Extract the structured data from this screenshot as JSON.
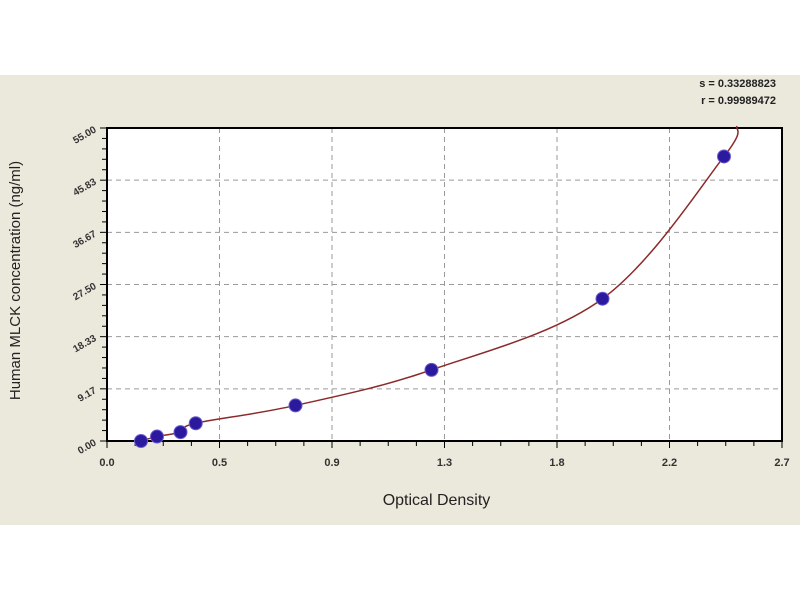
{
  "stats": {
    "s_line": "s = 0.33288823",
    "r_line": "r = 0.99989472"
  },
  "chart_data": {
    "type": "scatter",
    "title": "",
    "xlabel": "Optical Density",
    "ylabel": "Human MLCK concentration (ng/ml)",
    "xlim": [
      0,
      2.7
    ],
    "ylim": [
      0,
      55
    ],
    "x_tick_labels": [
      "0.0",
      "0.5",
      "0.9",
      "1.3",
      "1.8",
      "2.2",
      "2.7"
    ],
    "x_ticks": [
      0,
      0.45,
      0.9,
      1.35,
      1.8,
      2.25,
      2.7
    ],
    "y_tick_labels": [
      "0.00",
      "9.17",
      "18.33",
      "27.50",
      "36.67",
      "45.83",
      "55.00"
    ],
    "y_ticks": [
      0,
      9.17,
      18.33,
      27.5,
      36.67,
      45.83,
      55
    ],
    "grid": true,
    "grid_style": "dashed",
    "series": [
      {
        "type": "scatter",
        "x": [
          0.136,
          0.2,
          0.294,
          0.355,
          0.754,
          1.298,
          1.982,
          2.468
        ],
        "y": [
          0,
          0.78,
          1.56,
          3.12,
          6.25,
          12.5,
          25,
          50
        ],
        "color": "#2b1a9e"
      },
      {
        "type": "line",
        "fit": "curve",
        "color": "#8b2a2a"
      }
    ],
    "colors": {
      "background": "#ebe8dc",
      "plot_area": "#ffffff",
      "grid": "#9a9a9a"
    }
  }
}
